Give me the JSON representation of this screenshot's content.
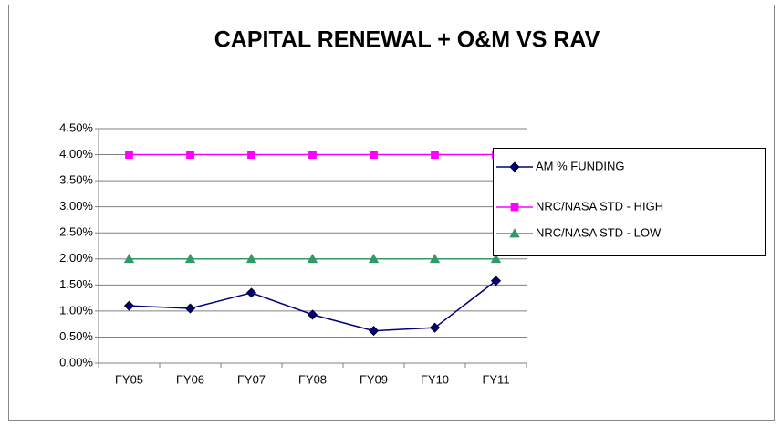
{
  "chart_data": {
    "type": "line",
    "title": "CAPITAL RENEWAL + O&M VS RAV",
    "categories": [
      "FY05",
      "FY06",
      "FY07",
      "FY08",
      "FY09",
      "FY10",
      "FY11"
    ],
    "series": [
      {
        "name": "AM % FUNDING",
        "color": "#000080",
        "marker": "diamond",
        "values": [
          1.1,
          1.05,
          1.35,
          0.93,
          0.62,
          0.68,
          1.58
        ]
      },
      {
        "name": "NRC/NASA STD - HIGH",
        "color": "#ff00ff",
        "marker": "square",
        "values": [
          4.0,
          4.0,
          4.0,
          4.0,
          4.0,
          4.0,
          4.0
        ]
      },
      {
        "name": "NRC/NASA STD - LOW",
        "color": "#339966",
        "marker": "triangle",
        "values": [
          2.0,
          2.0,
          2.0,
          2.0,
          2.0,
          2.0,
          2.0
        ]
      }
    ],
    "ylim": [
      0,
      4.5
    ],
    "yticks": [
      {
        "value": 0,
        "label": "0.00%"
      },
      {
        "value": 0.5,
        "label": "0.50%"
      },
      {
        "value": 1,
        "label": "1.00%"
      },
      {
        "value": 1.5,
        "label": "1.50%"
      },
      {
        "value": 2,
        "label": "2.00%"
      },
      {
        "value": 2.5,
        "label": "2.50%"
      },
      {
        "value": 3,
        "label": "3.00%"
      },
      {
        "value": 3.5,
        "label": "3.50%"
      },
      {
        "value": 4,
        "label": "4.00%"
      },
      {
        "value": 4.5,
        "label": "4.50%"
      }
    ],
    "grid": true,
    "legend": "right"
  }
}
